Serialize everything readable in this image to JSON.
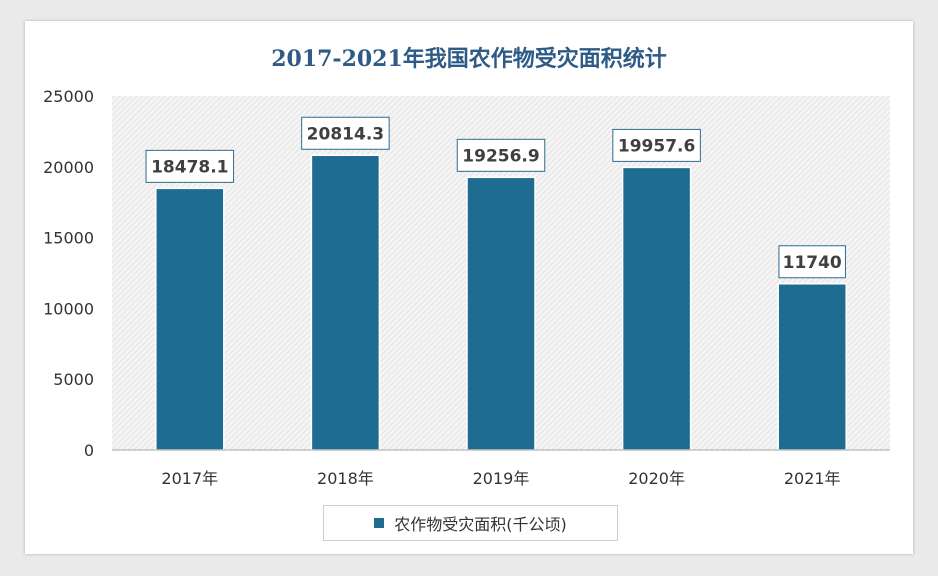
{
  "chart_data": {
    "type": "bar",
    "title": "2017-2021年我国农作物受灾面积统计",
    "categories": [
      "2017年",
      "2018年",
      "2019年",
      "2020年",
      "2021年"
    ],
    "series": [
      {
        "name": "农作物受灾面积(千公顷)",
        "values": [
          18478.1,
          20814.3,
          19256.9,
          19957.6,
          11740
        ]
      }
    ],
    "data_labels": [
      "18478.1",
      "20814.3",
      "19256.9",
      "19957.6",
      "11740"
    ],
    "ylim": [
      0,
      25000
    ],
    "yticks": [
      0,
      5000,
      10000,
      15000,
      20000,
      25000
    ],
    "legend_position": "bottom",
    "grid": false,
    "bar_color": "#1e6c91"
  }
}
